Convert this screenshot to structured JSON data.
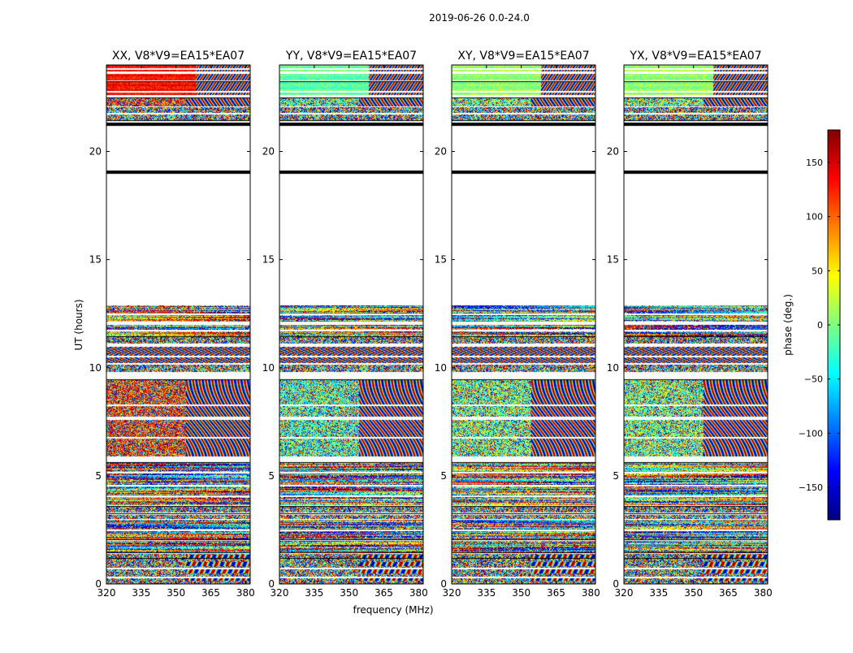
{
  "figure": {
    "suptitle": "2019-06-26 0.0-24.0",
    "xlabel": "frequency (MHz)",
    "ylabel": "UT (hours)"
  },
  "colorbar": {
    "label": "phase (deg.)",
    "range": [
      -180,
      180
    ],
    "ticks": [
      -150,
      -100,
      -50,
      0,
      50,
      100,
      150
    ],
    "tick_labels": [
      "−150",
      "−100",
      "−50",
      "0",
      "50",
      "100",
      "150"
    ],
    "colormap": "jet",
    "colors": [
      "#000080",
      "#0000ff",
      "#0080ff",
      "#00ffff",
      "#80ff80",
      "#ffff00",
      "#ff8000",
      "#ff0000",
      "#800000"
    ]
  },
  "chart_data": {
    "type": "heatmap",
    "x_range": [
      320,
      382
    ],
    "y_range": [
      0,
      24
    ],
    "x_ticks": [
      320,
      335,
      350,
      365,
      380
    ],
    "y_ticks": [
      0,
      5,
      10,
      15,
      20
    ],
    "value_label": "phase (deg.)",
    "value_range": [
      -180,
      180
    ],
    "flagged_intervals_hours": [
      [
        12.9,
        19.0
      ],
      [
        19.1,
        21.3
      ]
    ],
    "panels": [
      {
        "title": "XX, V8*V9=EA15*EA07",
        "polarization": "XX"
      },
      {
        "title": "YY, V8*V9=EA15*EA07",
        "polarization": "YY"
      },
      {
        "title": "XY, V8*V9=EA15*EA07",
        "polarization": "XY"
      },
      {
        "title": "YX, V8*V9=EA15*EA07",
        "polarization": "YX"
      }
    ]
  }
}
